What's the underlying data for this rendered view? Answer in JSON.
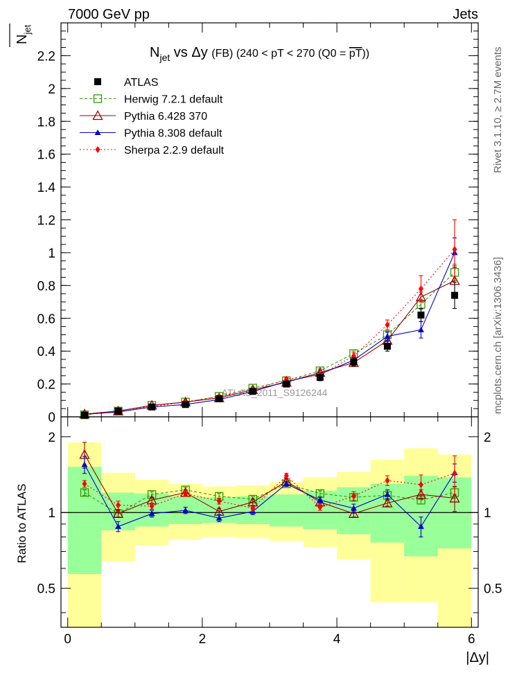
{
  "header": {
    "left": "7000 GeV pp",
    "right": "Jets"
  },
  "side_labels": {
    "rivet": "Rivet 3.1.10, ≥ 2.7M events",
    "mcplots": "mcplots.cern.ch [arXiv:1306.3436]"
  },
  "watermark": "ATLAS_2011_S9126244",
  "main_title": {
    "part1": "N",
    "part1_sub": "jet",
    "part2": " vs Δy ",
    "part3": "(FB) (240 < pT < 270 (Q0 = ",
    "part3_over": "pT",
    "part3_end": "))"
  },
  "ylabel": {
    "base": "N",
    "sub": "jet"
  },
  "ratio_ylabel": "Ratio to ATLAS",
  "xlabel": "|Δy|",
  "chart_data": [
    {
      "type": "line",
      "name": "main",
      "xlim": [
        -0.1,
        6.1
      ],
      "ylim": [
        0,
        2.4
      ],
      "x_ticks": [
        0,
        2,
        4,
        6
      ],
      "y_ticks": [
        0,
        0.2,
        0.4,
        0.6,
        0.8,
        1,
        1.2,
        1.4,
        1.6,
        1.8,
        2,
        2.2
      ],
      "y_tick_labels": [
        "0",
        "0.2",
        "0.4",
        "0.6",
        "0.8",
        "1",
        "1.2",
        "1.4",
        "1.6",
        "1.8",
        "2",
        "2.2"
      ],
      "x": [
        0.25,
        0.75,
        1.25,
        1.75,
        2.25,
        2.75,
        3.25,
        3.75,
        4.25,
        4.75,
        5.25,
        5.75
      ],
      "series": [
        {
          "name": "ATLAS",
          "style": "data",
          "color": "#000000",
          "values": [
            0.01,
            0.035,
            0.06,
            0.075,
            0.11,
            0.155,
            0.2,
            0.24,
            0.335,
            0.43,
            0.62,
            0.74
          ],
          "err": [
            0.003,
            0.005,
            0.006,
            0.007,
            0.01,
            0.012,
            0.016,
            0.02,
            0.025,
            0.03,
            0.04,
            0.08
          ]
        },
        {
          "name": "Herwig 7.2.1 default",
          "style": "open-square",
          "color": "#339900",
          "dash": "4,3",
          "values": [
            0.012,
            0.035,
            0.07,
            0.09,
            0.125,
            0.175,
            0.22,
            0.28,
            0.385,
            0.5,
            0.685,
            0.88
          ],
          "err": [
            0.002,
            0.003,
            0.004,
            0.005,
            0.006,
            0.008,
            0.01,
            0.012,
            0.015,
            0.02,
            0.03,
            0.05
          ]
        },
        {
          "name": "Pythia 6.428 370",
          "style": "open-triangle",
          "color": "#990000",
          "dash": "",
          "values": [
            0.017,
            0.035,
            0.07,
            0.09,
            0.115,
            0.165,
            0.21,
            0.27,
            0.33,
            0.465,
            0.73,
            0.83
          ],
          "err": [
            0.002,
            0.003,
            0.004,
            0.005,
            0.006,
            0.008,
            0.01,
            0.012,
            0.015,
            0.02,
            0.03,
            0.09
          ]
        },
        {
          "name": "Pythia 8.308 default",
          "style": "filled-triangle",
          "color": "#0000cc",
          "dash": "",
          "values": [
            0.015,
            0.03,
            0.06,
            0.075,
            0.105,
            0.155,
            0.215,
            0.26,
            0.345,
            0.49,
            0.53,
            1.0
          ],
          "err": [
            0.002,
            0.003,
            0.004,
            0.005,
            0.006,
            0.008,
            0.01,
            0.012,
            0.015,
            0.025,
            0.05,
            0.09
          ]
        },
        {
          "name": "Sherpa 2.2.9 default",
          "style": "diamond",
          "color": "#ff0000",
          "dash": "2,3",
          "values": [
            0.013,
            0.038,
            0.062,
            0.09,
            0.125,
            0.16,
            0.23,
            0.255,
            0.37,
            0.56,
            0.78,
            1.02
          ],
          "err": [
            0.002,
            0.003,
            0.004,
            0.005,
            0.006,
            0.008,
            0.01,
            0.012,
            0.02,
            0.03,
            0.08,
            0.18
          ]
        }
      ]
    },
    {
      "type": "line",
      "name": "ratio",
      "xlim": [
        -0.1,
        6.1
      ],
      "ylim": [
        0.35,
        2.4
      ],
      "y_scale": "log",
      "x_ticks": [
        0,
        2,
        4,
        6
      ],
      "x_tick_labels": [
        "0",
        "2",
        "4",
        "6"
      ],
      "y_ticks": [
        0.5,
        1,
        2
      ],
      "y_tick_labels": [
        "0.5",
        "1",
        "2"
      ],
      "x": [
        0.25,
        0.75,
        1.25,
        1.75,
        2.25,
        2.75,
        3.25,
        3.75,
        4.25,
        4.75,
        5.25,
        5.75
      ],
      "bands": {
        "yellow": {
          "lo": [
            0.35,
            0.64,
            0.74,
            0.78,
            0.8,
            0.79,
            0.77,
            0.73,
            0.65,
            0.44,
            0.44,
            0.35
          ],
          "hi": [
            1.9,
            1.44,
            1.35,
            1.3,
            1.27,
            1.28,
            1.32,
            1.38,
            1.45,
            1.62,
            1.8,
            1.7
          ],
          "color": "#ffff99"
        },
        "green": {
          "lo": [
            0.57,
            0.85,
            0.88,
            0.9,
            0.91,
            0.9,
            0.88,
            0.86,
            0.82,
            0.76,
            0.67,
            0.72
          ],
          "hi": [
            1.52,
            1.2,
            1.19,
            1.16,
            1.15,
            1.16,
            1.18,
            1.22,
            1.26,
            1.3,
            1.4,
            1.38
          ],
          "color": "#99ff99"
        }
      },
      "series": [
        {
          "name": "Herwig 7.2.1 default",
          "style": "open-square",
          "color": "#339900",
          "dash": "4,3",
          "values": [
            1.2,
            0.99,
            1.18,
            1.23,
            1.16,
            1.13,
            1.3,
            1.19,
            1.15,
            1.17,
            1.12,
            1.2
          ],
          "err": [
            0.03,
            0.03,
            0.03,
            0.03,
            0.03,
            0.03,
            0.03,
            0.03,
            0.03,
            0.03,
            0.04,
            0.06
          ]
        },
        {
          "name": "Pythia 6.428 370",
          "style": "open-triangle",
          "color": "#990000",
          "dash": "",
          "values": [
            1.7,
            0.99,
            1.12,
            1.2,
            1.01,
            1.1,
            1.33,
            1.1,
            0.99,
            1.09,
            1.18,
            1.14
          ],
          "err": [
            0.2,
            0.03,
            0.03,
            0.03,
            0.03,
            0.03,
            0.03,
            0.03,
            0.03,
            0.03,
            0.05,
            0.13
          ]
        },
        {
          "name": "Pythia 8.308 default",
          "style": "filled-triangle",
          "color": "#0000cc",
          "dash": "",
          "values": [
            1.55,
            0.88,
            0.99,
            1.02,
            0.95,
            1.01,
            1.3,
            1.12,
            1.04,
            1.18,
            0.88,
            1.44
          ],
          "err": [
            0.12,
            0.04,
            0.03,
            0.03,
            0.03,
            0.03,
            0.03,
            0.03,
            0.04,
            0.05,
            0.08,
            0.12
          ]
        },
        {
          "name": "Sherpa 2.2.9 default",
          "style": "diamond",
          "color": "#ff0000",
          "dash": "2,3",
          "values": [
            1.3,
            1.07,
            1.06,
            1.19,
            1.11,
            1.04,
            1.4,
            1.05,
            1.16,
            1.34,
            1.29,
            1.43
          ],
          "err": [
            0.04,
            0.04,
            0.03,
            0.03,
            0.03,
            0.03,
            0.03,
            0.03,
            0.05,
            0.06,
            0.12,
            0.25
          ]
        }
      ]
    }
  ]
}
